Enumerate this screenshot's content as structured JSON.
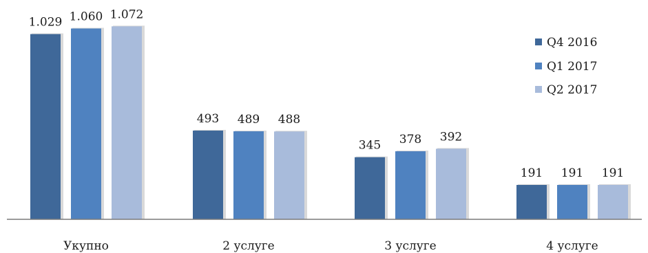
{
  "chart_data": {
    "type": "bar",
    "categories": [
      "Укупно",
      "2 услуге",
      "3 услуге",
      "4 услуге"
    ],
    "series": [
      {
        "name": "Q4 2016",
        "color": "#3f6899",
        "values": [
          1029,
          493,
          345,
          191
        ],
        "labels": [
          "1.029",
          "493",
          "345",
          "191"
        ]
      },
      {
        "name": "Q1 2017",
        "color": "#4f82c0",
        "values": [
          1060,
          489,
          378,
          191
        ],
        "labels": [
          "1.060",
          "489",
          "378",
          "191"
        ]
      },
      {
        "name": "Q2 2017",
        "color": "#a8bbdb",
        "values": [
          1072,
          488,
          392,
          191
        ],
        "labels": [
          "1.072",
          "488",
          "392",
          "191"
        ]
      }
    ],
    "ylim": [
      0,
      1100
    ],
    "grid": false,
    "legend": "top-right"
  }
}
